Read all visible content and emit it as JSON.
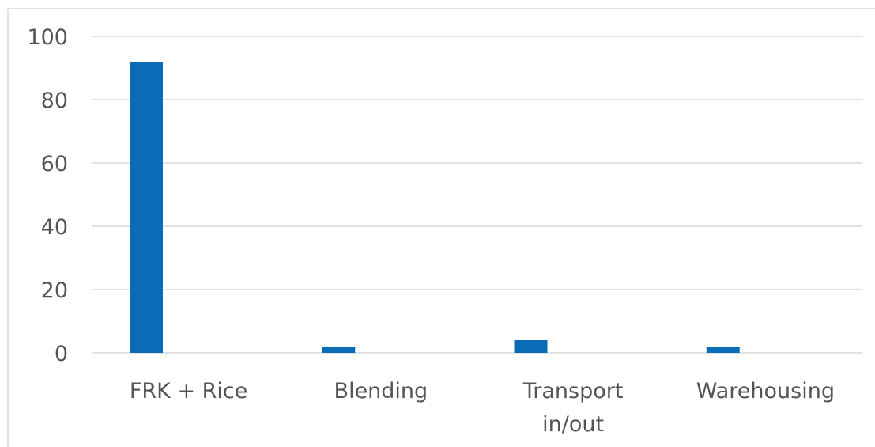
{
  "chart_data": {
    "type": "bar",
    "title": "",
    "xlabel": "",
    "ylabel": "",
    "categories": [
      "FRK + Rice",
      "Blending",
      "Transport in/out",
      "Warehousing"
    ],
    "category_label_lines": [
      [
        "FRK + Rice"
      ],
      [
        "Blending"
      ],
      [
        "Transport",
        "in/out"
      ],
      [
        "Warehousing"
      ]
    ],
    "values": [
      92,
      2,
      4,
      2
    ],
    "ylim": [
      0,
      100
    ],
    "yticks": [
      0,
      20,
      40,
      60,
      80,
      100
    ],
    "grid": true,
    "legend": "none",
    "colors": {
      "bar": "#0a6bb6",
      "grid": "#d9d9d9",
      "text": "#555555"
    }
  }
}
